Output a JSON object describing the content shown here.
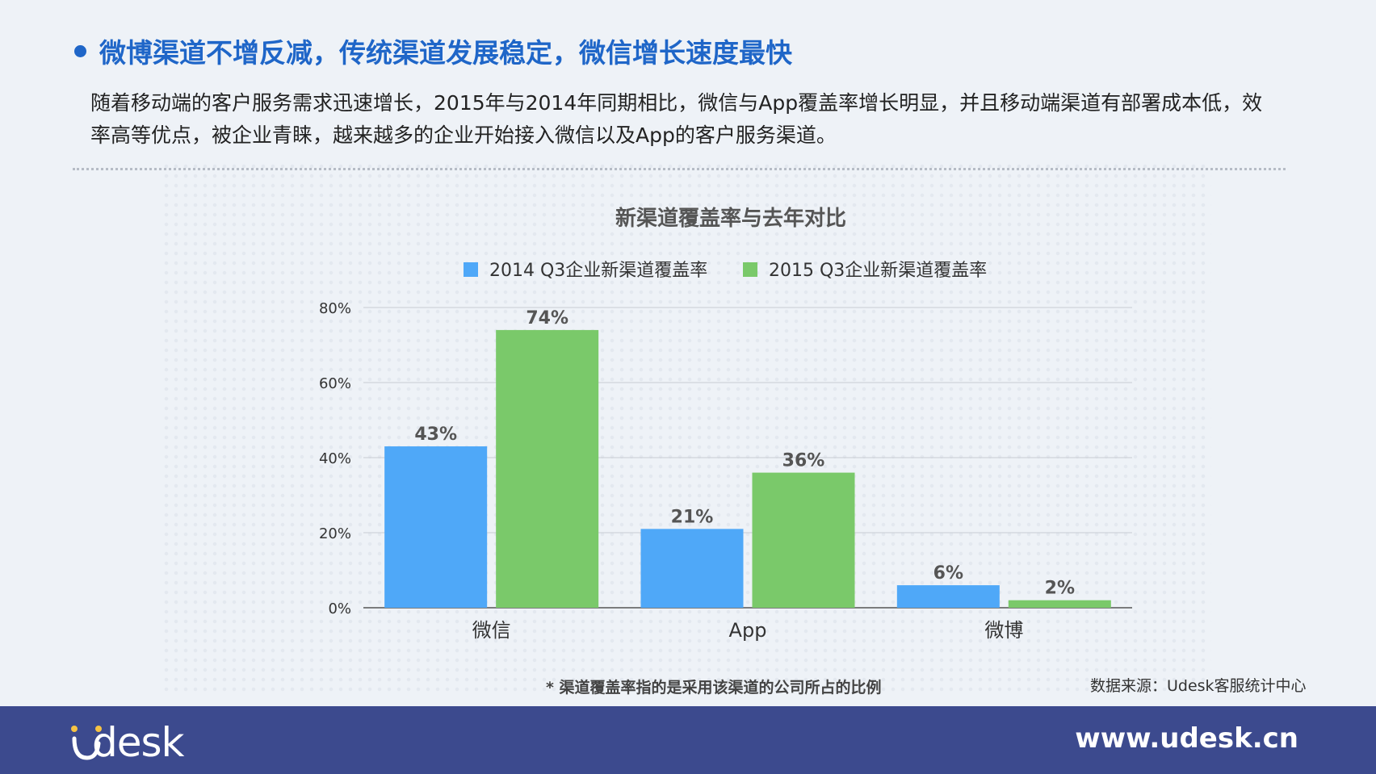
{
  "headline": "微博渠道不增反减，传统渠道发展稳定，微信增长速度最快",
  "paragraph": "随着移动端的客户服务需求迅速增长，2015年与2014年同期相比，微信与App覆盖率增长明显，并且移动端渠道有部署成本低，效率高等优点，被企业青睐，越来越多的企业开始接入微信以及App的客户服务渠道。",
  "chart_data": {
    "type": "bar",
    "title": "新渠道覆盖率与去年对比",
    "categories": [
      "微信",
      "App",
      "微博"
    ],
    "series": [
      {
        "name": "2014 Q3企业新渠道覆盖率",
        "values": [
          43,
          21,
          6
        ],
        "labels": [
          "43%",
          "21%",
          "6%"
        ],
        "color": "#4fa8f8"
      },
      {
        "name": "2015 Q3企业新渠道覆盖率",
        "values": [
          74,
          36,
          2
        ],
        "labels": [
          "74%",
          "36%",
          "2%"
        ],
        "color": "#7ac96a"
      }
    ],
    "ylim": [
      0,
      80
    ],
    "yticks": [
      0,
      20,
      40,
      60,
      80
    ],
    "ytick_labels": [
      "0%",
      "20%",
      "40%",
      "60%",
      "80%"
    ],
    "grid": true,
    "legend_position": "top"
  },
  "footnote": "* 渠道覆盖率指的是采用该渠道的公司所占的比例",
  "source": "数据来源：Udesk客服统计中心",
  "footer": {
    "logo_text": "desk",
    "website": "www.udesk.cn"
  },
  "colors": {
    "headline": "#1f66c8",
    "footer_bg": "#3c4a8e",
    "logo_dot": "#f6c343"
  }
}
